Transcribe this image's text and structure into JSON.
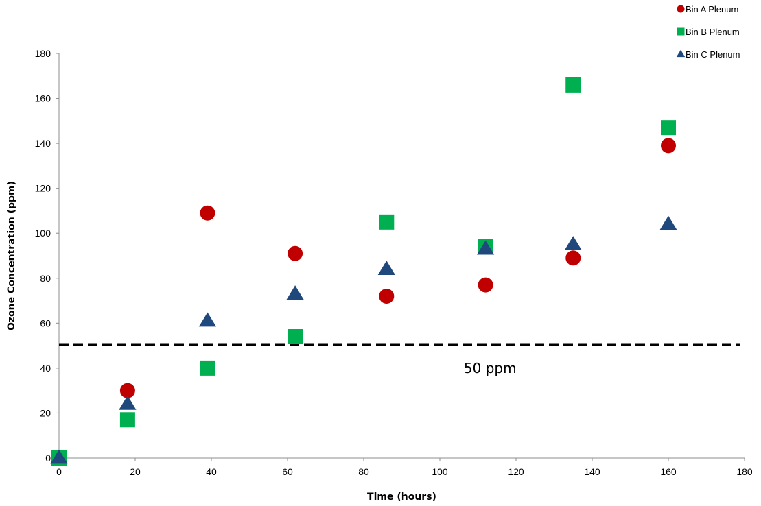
{
  "chart_data": {
    "type": "scatter",
    "title": "",
    "xlabel": "Time (hours)",
    "ylabel": "Ozone Concentration (ppm)",
    "xlim": [
      0,
      180
    ],
    "ylim": [
      0,
      180
    ],
    "xticks": [
      0,
      20,
      40,
      60,
      80,
      100,
      120,
      140,
      160,
      180
    ],
    "yticks": [
      0,
      20,
      40,
      60,
      80,
      100,
      120,
      140,
      160,
      180
    ],
    "grid": false,
    "legend_position": "top-right",
    "series": [
      {
        "name": "Bin A Plenum",
        "marker": "circle",
        "color": "#C00000",
        "points": [
          [
            0,
            0
          ],
          [
            18,
            30
          ],
          [
            39,
            109
          ],
          [
            62,
            91
          ],
          [
            86,
            72
          ],
          [
            112,
            77
          ],
          [
            135,
            89
          ],
          [
            160,
            139
          ]
        ]
      },
      {
        "name": "Bin B Plenum",
        "marker": "square",
        "color": "#00B050",
        "points": [
          [
            0,
            0
          ],
          [
            18,
            17
          ],
          [
            39,
            40
          ],
          [
            62,
            54
          ],
          [
            86,
            105
          ],
          [
            112,
            94
          ],
          [
            135,
            166
          ],
          [
            160,
            147
          ]
        ]
      },
      {
        "name": "Bin C Plenum",
        "marker": "triangle",
        "color": "#1F497D",
        "points": [
          [
            0,
            0
          ],
          [
            18,
            24
          ],
          [
            39,
            61
          ],
          [
            62,
            73
          ],
          [
            86,
            84
          ],
          [
            112,
            93
          ],
          [
            135,
            95
          ],
          [
            160,
            104
          ]
        ]
      }
    ],
    "reference_line": {
      "y": 50.5,
      "style": "dashed",
      "color": "#000000"
    },
    "annotation": {
      "text": "50 ppm",
      "x": 115,
      "y": 40
    }
  }
}
